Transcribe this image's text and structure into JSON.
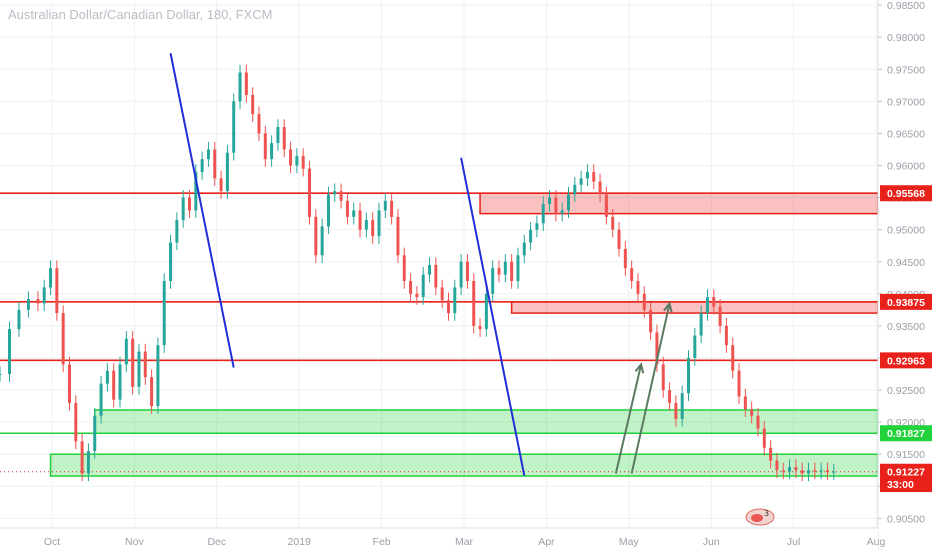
{
  "header": {
    "symbol_title": "Australian Dollar/Canadian Dollar, 180, FXCM"
  },
  "chart_data": {
    "type": "candlestick",
    "title": "Australian Dollar/Canadian Dollar, 180, FXCM",
    "xlabel": "",
    "ylabel": "",
    "ylim": [
      0.9035,
      0.9858
    ],
    "grid": true,
    "y_ticks": [
      "0.98500",
      "0.98000",
      "0.97500",
      "0.97000",
      "0.96500",
      "0.96000",
      "0.95500",
      "0.95000",
      "0.94500",
      "0.94000",
      "0.93500",
      "0.93000",
      "0.92500",
      "0.92000",
      "0.91500",
      "0.91000",
      "0.90500"
    ],
    "x_ticks": [
      "Oct",
      "Nov",
      "Dec",
      "2019",
      "Feb",
      "Mar",
      "Apr",
      "May",
      "Jun",
      "Jul",
      "Aug"
    ],
    "price_series": {
      "name": "AUDCAD",
      "x": [
        0,
        3,
        6,
        9,
        12,
        14,
        16,
        18,
        20,
        22,
        24,
        26,
        28,
        30,
        32,
        34,
        36,
        38,
        40,
        42,
        44,
        46,
        48,
        50,
        52,
        54,
        56,
        58,
        60,
        62,
        64,
        66,
        68,
        70,
        72,
        74,
        76,
        78,
        80,
        82,
        84,
        86,
        88,
        90,
        92,
        94,
        96,
        98,
        100,
        102,
        104,
        106,
        108,
        110,
        112,
        114,
        116,
        118,
        120,
        122,
        124,
        126,
        128,
        130,
        132,
        134,
        136,
        138,
        140,
        142,
        144,
        146,
        148,
        150,
        152,
        154,
        156,
        158,
        160,
        162,
        164,
        166,
        168,
        170,
        172,
        174,
        176,
        178,
        180,
        182,
        184,
        186,
        188,
        190,
        192,
        194,
        196,
        198,
        200,
        202,
        204,
        206,
        208,
        210,
        212,
        214,
        216,
        218,
        220,
        222,
        224,
        226,
        228,
        230,
        232,
        234,
        236,
        238,
        240,
        242,
        244,
        246,
        248,
        250,
        252,
        254,
        256,
        258,
        260,
        262,
        264
      ],
      "y": [
        0.9275,
        0.9345,
        0.9375,
        0.9392,
        0.9385,
        0.941,
        0.944,
        0.937,
        0.929,
        0.923,
        0.917,
        0.912,
        0.9155,
        0.921,
        0.926,
        0.928,
        0.9235,
        0.929,
        0.933,
        0.9255,
        0.931,
        0.927,
        0.9225,
        0.932,
        0.942,
        0.948,
        0.9515,
        0.955,
        0.953,
        0.959,
        0.961,
        0.9625,
        0.958,
        0.956,
        0.962,
        0.97,
        0.9745,
        0.971,
        0.968,
        0.965,
        0.961,
        0.9635,
        0.966,
        0.9625,
        0.96,
        0.9615,
        0.9595,
        0.952,
        0.946,
        0.9505,
        0.9555,
        0.956,
        0.9545,
        0.952,
        0.953,
        0.95,
        0.9515,
        0.949,
        0.953,
        0.9545,
        0.952,
        0.946,
        0.942,
        0.94,
        0.9395,
        0.943,
        0.9445,
        0.941,
        0.939,
        0.937,
        0.941,
        0.945,
        0.942,
        0.935,
        0.9345,
        0.94,
        0.944,
        0.943,
        0.945,
        0.942,
        0.946,
        0.948,
        0.95,
        0.951,
        0.954,
        0.955,
        0.9525,
        0.953,
        0.9555,
        0.957,
        0.958,
        0.959,
        0.9575,
        0.9555,
        0.952,
        0.95,
        0.947,
        0.944,
        0.942,
        0.94,
        0.9375,
        0.934,
        0.929,
        0.925,
        0.923,
        0.9205,
        0.9245,
        0.93,
        0.9335,
        0.937,
        0.9395,
        0.938,
        0.935,
        0.932,
        0.928,
        0.924,
        0.922,
        0.921,
        0.919,
        0.916,
        0.914,
        0.9125,
        0.9123,
        0.913,
        0.9125,
        0.912,
        0.9125,
        0.9123,
        0.9125,
        0.9122,
        0.9123
      ]
    },
    "horizontal_levels": [
      {
        "name": "0.95568",
        "value": 0.95568,
        "color": "#e8211a"
      },
      {
        "name": "0.93875",
        "value": 0.93875,
        "color": "#e8211a"
      },
      {
        "name": "0.92963",
        "value": 0.92963,
        "color": "#e8211a"
      },
      {
        "name": "0.91827",
        "value": 0.91827,
        "color": "#21d23a"
      }
    ],
    "zones": [
      {
        "y1": 0.95568,
        "y2": 0.9525,
        "x_start": 152,
        "color": "#e8211a"
      },
      {
        "y1": 0.93875,
        "y2": 0.937,
        "x_start": 162,
        "color": "#e8211a"
      },
      {
        "y1": 0.9219,
        "y2": 0.91827,
        "x_start": 30,
        "color": "#21d23a"
      },
      {
        "y1": 0.915,
        "y2": 0.9116,
        "x_start": 16,
        "color": "#21d23a"
      }
    ],
    "trend_lines": [
      {
        "x1": 54,
        "y1": 0.9775,
        "x2": 74,
        "y2": 0.9285,
        "color": "#1f2fd8"
      },
      {
        "x1": 146,
        "y1": 0.9612,
        "x2": 166,
        "y2": 0.9117,
        "color": "#1f2fd8"
      }
    ],
    "projection_arrows": [
      {
        "x1": 195,
        "y1": 0.912,
        "x2": 203,
        "y2": 0.929,
        "color": "#5a7a62"
      },
      {
        "x1": 200,
        "y1": 0.912,
        "x2": 212,
        "y2": 0.9385,
        "color": "#5a7a62"
      }
    ],
    "price_labels": [
      {
        "text": "0.95568",
        "value": 0.95568,
        "color": "#e8211a"
      },
      {
        "text": "0.93875",
        "value": 0.93875,
        "color": "#e8211a"
      },
      {
        "text": "0.92963",
        "value": 0.92963,
        "color": "#e8211a"
      },
      {
        "text": "0.91827",
        "value": 0.91827,
        "color": "#21d23a"
      },
      {
        "text": "0.91227",
        "value": 0.91227,
        "color": "#e8211a"
      },
      {
        "text": "33:00",
        "value": 0.91035,
        "color": "#e8211a"
      }
    ],
    "current_price": 0.91227
  }
}
